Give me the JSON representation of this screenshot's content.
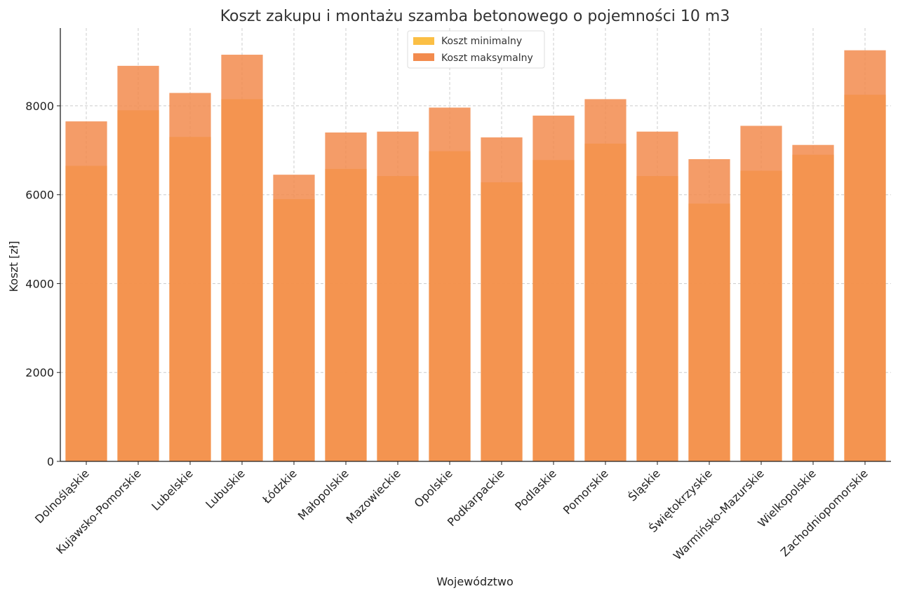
{
  "chart_data": {
    "type": "bar",
    "title": "Koszt zakupu i montażu szamba betonowego o pojemności 10 m3",
    "xlabel": "Województwo",
    "ylabel": "Koszt [zł]",
    "ylim": [
      0,
      9750
    ],
    "yticks": [
      0,
      2000,
      4000,
      6000,
      8000
    ],
    "grid": true,
    "legend_position": "top-center",
    "categories": [
      "Dolnośląskie",
      "Kujawsko-Pomorskie",
      "Lubelskie",
      "Lubuskie",
      "Łódzkie",
      "Małopolskie",
      "Mazowieckie",
      "Opolskie",
      "Podkarpackie",
      "Podlaskie",
      "Pomorskie",
      "Śląskie",
      "Świętokrzyskie",
      "Warmińsko-Mazurskie",
      "Wielkopolskie",
      "Zachodniopomorskie"
    ],
    "series": [
      {
        "name": "Koszt minimalny",
        "color": "#fbbf45",
        "values": [
          6650,
          7900,
          7300,
          8150,
          5900,
          6580,
          6420,
          6980,
          6280,
          6780,
          7150,
          6420,
          5800,
          6540,
          6900,
          8250
        ]
      },
      {
        "name": "Koszt maksymalny",
        "color": "#f28b4e",
        "values": [
          7650,
          8900,
          8290,
          9150,
          6450,
          7400,
          7420,
          7960,
          7290,
          7780,
          8150,
          7420,
          6800,
          7550,
          7120,
          9250
        ]
      }
    ]
  }
}
